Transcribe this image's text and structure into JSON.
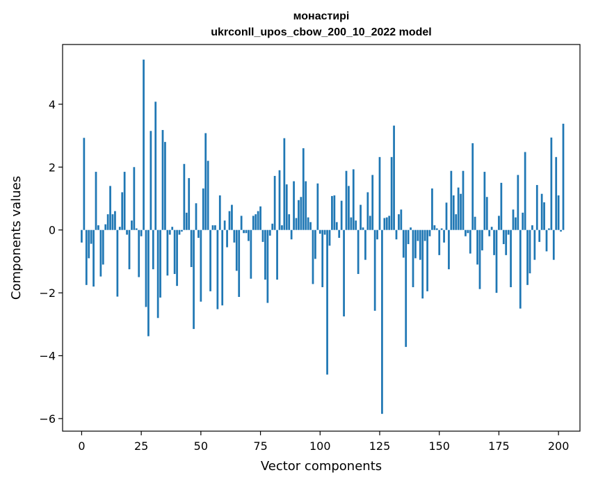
{
  "chart_data": {
    "type": "bar",
    "title": "монастирі",
    "subtitle": "ukrconll_upos_cbow_200_10_2022 model",
    "xlabel": "Vector components",
    "ylabel": "Components values",
    "xlim": [
      -8,
      209
    ],
    "ylim": [
      -6.4,
      5.9
    ],
    "xticks": [
      0,
      25,
      50,
      75,
      100,
      125,
      150,
      175,
      200
    ],
    "yticks": [
      -6,
      -4,
      -2,
      0,
      2,
      4
    ],
    "grid": false,
    "bar_color": "#1f77b4",
    "values": [
      -0.4,
      2.93,
      -1.75,
      -0.9,
      -0.44,
      -1.8,
      1.85,
      0.15,
      -1.48,
      -1.1,
      0.18,
      0.5,
      1.4,
      0.5,
      0.6,
      -2.12,
      0.1,
      1.2,
      1.85,
      -0.15,
      -1.25,
      0.3,
      2.0,
      0.05,
      -1.5,
      -0.2,
      5.42,
      -2.45,
      -3.38,
      3.15,
      -1.25,
      4.08,
      -2.8,
      -2.15,
      3.18,
      2.8,
      -1.45,
      -0.15,
      0.1,
      -1.4,
      -1.78,
      -0.15,
      -0.05,
      2.1,
      0.55,
      1.65,
      -1.18,
      -3.15,
      0.85,
      -0.25,
      -2.28,
      1.32,
      3.08,
      2.2,
      -1.95,
      0.15,
      0.15,
      -2.52,
      1.1,
      -2.4,
      0.3,
      -0.55,
      0.6,
      0.8,
      -0.4,
      -1.3,
      -2.13,
      0.45,
      -0.1,
      -0.1,
      -0.35,
      -1.55,
      0.45,
      0.5,
      0.6,
      0.75,
      -0.38,
      -1.58,
      -2.32,
      -0.18,
      0.2,
      1.72,
      -1.58,
      1.9,
      0.15,
      2.92,
      1.45,
      0.5,
      -0.3,
      1.55,
      0.38,
      0.95,
      1.05,
      2.6,
      1.55,
      0.4,
      0.25,
      -1.72,
      -0.92,
      1.48,
      -0.12,
      -1.82,
      -0.15,
      -4.6,
      -0.5,
      1.08,
      1.1,
      0.25,
      -0.25,
      0.93,
      -2.75,
      1.88,
      1.4,
      0.4,
      1.93,
      0.3,
      -1.4,
      0.8,
      0.08,
      -0.95,
      1.2,
      0.45,
      1.75,
      -2.57,
      -0.3,
      2.32,
      -5.85,
      0.38,
      0.4,
      0.45,
      2.32,
      3.32,
      -0.3,
      0.5,
      0.65,
      -0.88,
      -3.72,
      -0.45,
      0.08,
      -1.82,
      -0.9,
      -0.35,
      -0.95,
      -2.18,
      -0.35,
      -1.95,
      -0.2,
      1.32,
      0.15,
      0.05,
      -0.8,
      0.05,
      -0.4,
      0.87,
      -1.25,
      1.88,
      1.1,
      0.5,
      1.35,
      1.15,
      1.88,
      -0.2,
      -0.1,
      -0.75,
      2.76,
      0.42,
      -1.1,
      -1.88,
      -0.65,
      1.85,
      1.05,
      -0.2,
      0.1,
      -0.8,
      -2.0,
      0.45,
      1.5,
      -0.45,
      -0.8,
      -0.15,
      -1.82,
      0.65,
      0.4,
      1.75,
      -2.5,
      0.55,
      2.48,
      -1.75,
      -1.38,
      0.15,
      -0.95,
      1.43,
      -0.38,
      1.15,
      0.88,
      -0.68,
      0.05,
      2.94,
      -0.95,
      2.32,
      1.1,
      -0.05,
      3.38
    ]
  }
}
